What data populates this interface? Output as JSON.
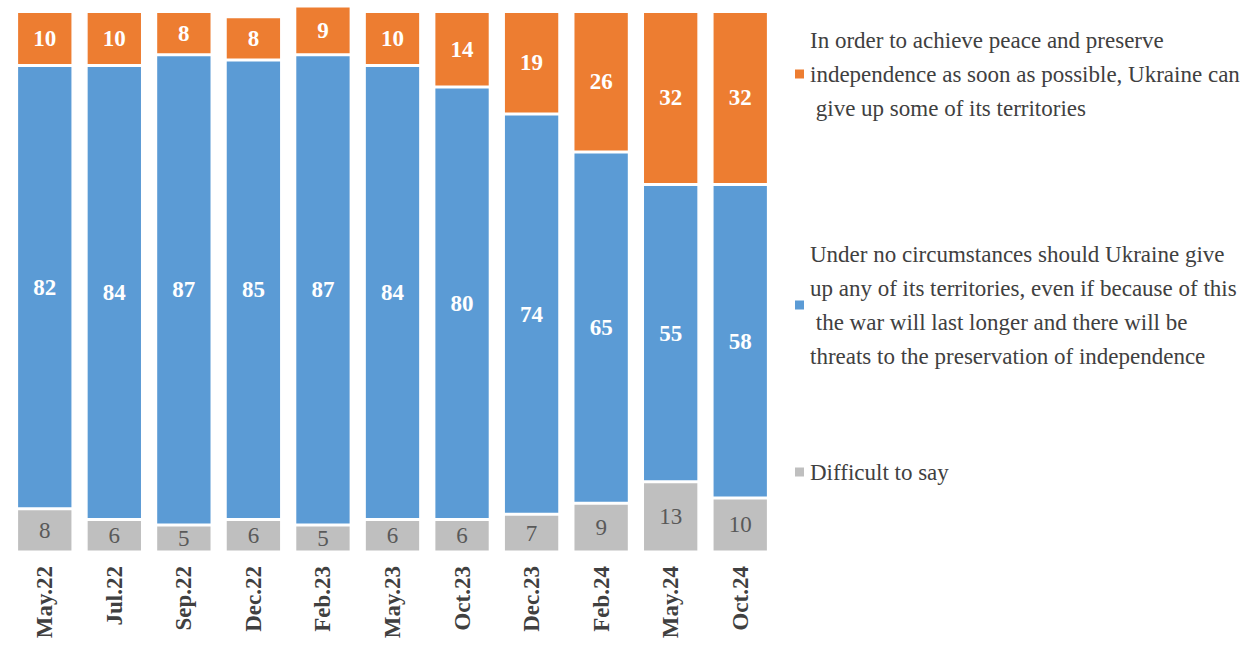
{
  "chart_data": {
    "type": "bar",
    "stacked": true,
    "data_labels": true,
    "grid": false,
    "tick_labels": "x",
    "legend": "right",
    "categories": [
      "May.22",
      "Jul.22",
      "Sep.22",
      "Dec.22",
      "Feb.23",
      "May.23",
      "Oct.23",
      "Dec.23",
      "Feb.24",
      "May.24",
      "Oct.24"
    ],
    "ylim": [
      0,
      101
    ],
    "series": [
      {
        "name": "In order to achieve peace and preserve independence as soon as possible, Ukraine can give up some of its territories",
        "color": "#ED7D31",
        "values": [
          10,
          10,
          8,
          8,
          9,
          10,
          14,
          19,
          26,
          32,
          32
        ]
      },
      {
        "name": "Under no circumstances should Ukraine give up any of its territories, even if because of this the war will last longer and there will be threats to the preservation of independence",
        "color": "#5B9BD5",
        "values": [
          82,
          84,
          87,
          85,
          87,
          84,
          80,
          74,
          65,
          55,
          58
        ]
      },
      {
        "name": "Difficult to say",
        "color": "#BFBFBF",
        "values": [
          8,
          6,
          5,
          6,
          5,
          6,
          6,
          7,
          9,
          13,
          10
        ]
      }
    ]
  }
}
